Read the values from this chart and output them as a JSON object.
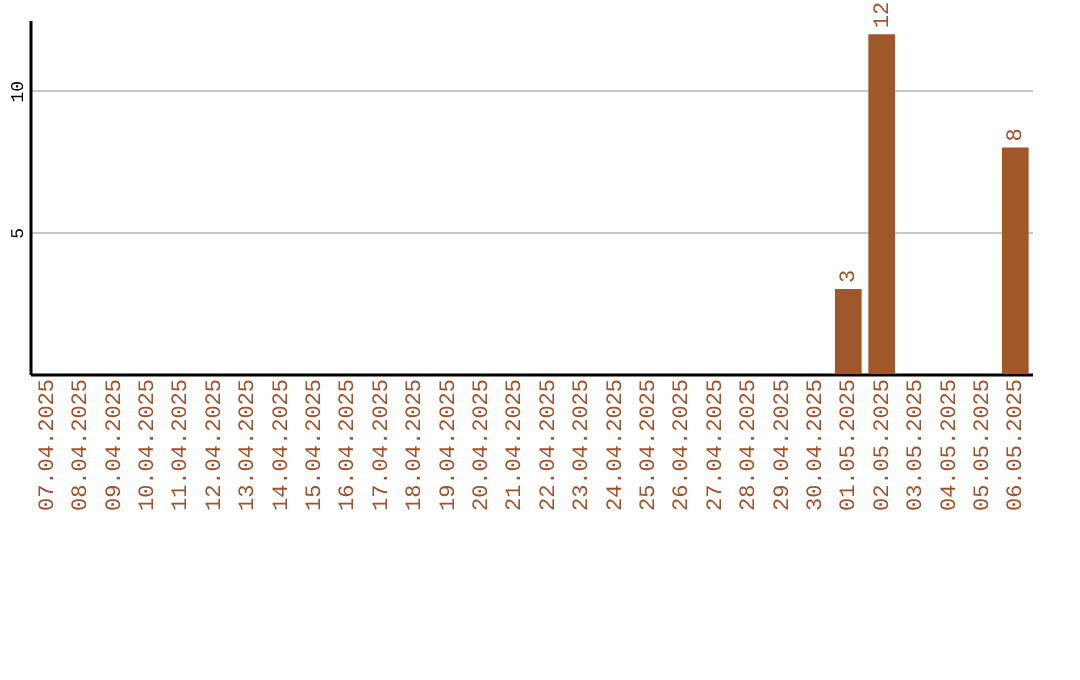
{
  "chart_data": {
    "type": "bar",
    "categories": [
      "07.04.2025",
      "08.04.2025",
      "09.04.2025",
      "10.04.2025",
      "11.04.2025",
      "12.04.2025",
      "13.04.2025",
      "14.04.2025",
      "15.04.2025",
      "16.04.2025",
      "17.04.2025",
      "18.04.2025",
      "19.04.2025",
      "20.04.2025",
      "21.04.2025",
      "22.04.2025",
      "23.04.2025",
      "24.04.2025",
      "25.04.2025",
      "26.04.2025",
      "27.04.2025",
      "28.04.2025",
      "29.04.2025",
      "30.04.2025",
      "01.05.2025",
      "02.05.2025",
      "03.05.2025",
      "04.05.2025",
      "05.05.2025",
      "06.05.2025"
    ],
    "values": [
      null,
      null,
      null,
      null,
      null,
      null,
      null,
      null,
      null,
      null,
      null,
      null,
      null,
      null,
      null,
      null,
      null,
      null,
      null,
      null,
      null,
      null,
      null,
      null,
      3,
      12,
      null,
      null,
      null,
      8
    ],
    "color": "#a0582a",
    "ylim": [
      0,
      12.5
    ],
    "yticks": [
      5,
      10
    ],
    "grid": "y",
    "data_labels": true
  }
}
